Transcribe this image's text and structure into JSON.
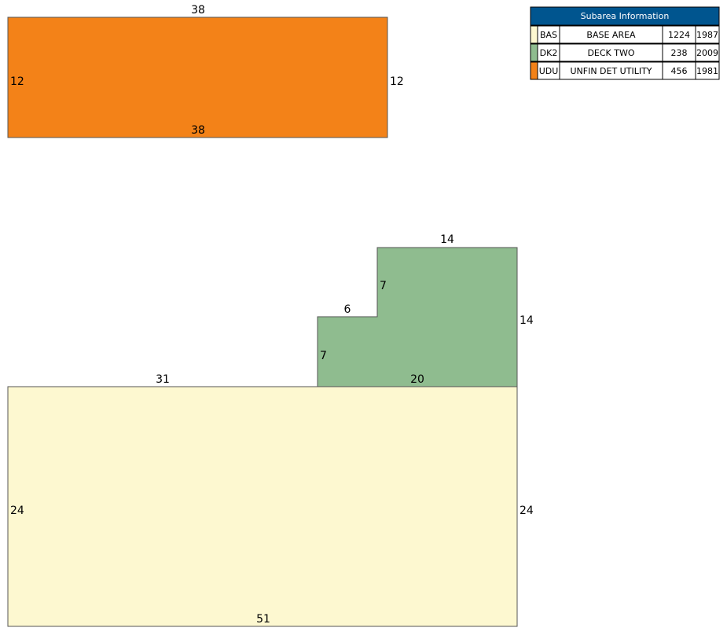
{
  "table": {
    "title": "Subarea Information",
    "rows": [
      [
        "BAS",
        "BASE AREA",
        1224,
        1987
      ],
      [
        "DK2",
        "DECK TWO",
        238,
        2009
      ],
      [
        "UDU",
        "UNFIN DET UTILITY",
        456,
        1981
      ]
    ]
  },
  "sketch": {
    "udu": [
      38,
      12,
      12,
      38
    ],
    "dk2": [
      14,
      7,
      6,
      7,
      14,
      20
    ],
    "bas": [
      31,
      24,
      24,
      51
    ]
  }
}
